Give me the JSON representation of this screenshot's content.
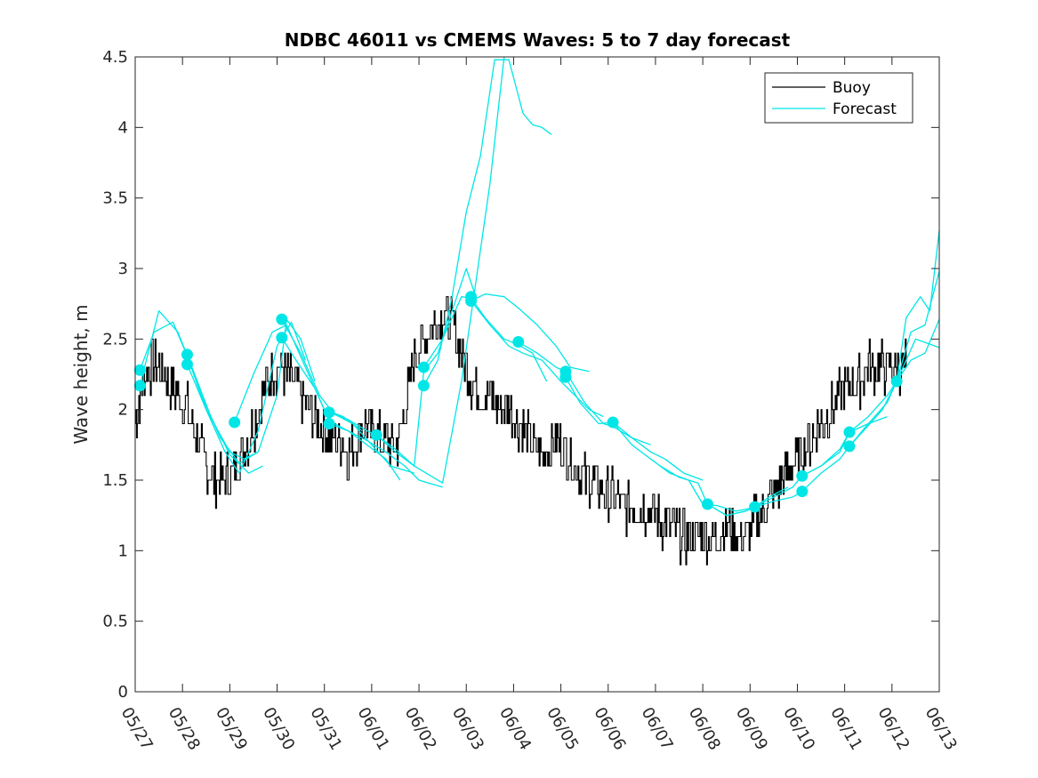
{
  "chart_data": {
    "type": "line",
    "title": "NDBC 46011 vs CMEMS Waves: 5 to 7 day forecast",
    "xlabel": "",
    "ylabel": "Wave height, m",
    "xlim": [
      "05/27",
      "06/13"
    ],
    "ylim": [
      0,
      4.5
    ],
    "yticks": [
      "0",
      "0.5",
      "1",
      "1.5",
      "2",
      "2.5",
      "3",
      "3.5",
      "4",
      "4.5"
    ],
    "xticks": [
      "05/27",
      "05/28",
      "05/29",
      "05/30",
      "05/31",
      "06/01",
      "06/02",
      "06/03",
      "06/04",
      "06/05",
      "06/06",
      "06/07",
      "06/08",
      "06/09",
      "06/10",
      "06/11",
      "06/12",
      "06/13"
    ],
    "grid": false,
    "legend": {
      "placement": "top-right",
      "entries": [
        "Buoy",
        "Forecast"
      ]
    },
    "colors": {
      "buoy": "#000000",
      "forecast": "#00e6e6"
    },
    "buoy": {
      "name": "Buoy",
      "x": [
        0,
        0.15,
        0.3,
        0.5,
        0.7,
        0.9,
        1.1,
        1.3,
        1.5,
        1.7,
        1.9,
        2.1,
        2.3,
        2.5,
        2.7,
        2.9,
        3.1,
        3.3,
        3.5,
        3.7,
        3.9,
        4.1,
        4.3,
        4.5,
        4.7,
        4.9,
        5.1,
        5.3,
        5.5,
        5.7,
        5.9,
        6.1,
        6.3,
        6.5,
        6.7,
        6.9,
        7.1,
        7.3,
        7.5,
        7.7,
        7.9,
        8.1,
        8.3,
        8.5,
        8.7,
        8.9,
        9.1,
        9.3,
        9.5,
        9.7,
        9.9,
        10.1,
        10.3,
        10.5,
        10.7,
        10.9,
        11.1,
        11.3,
        11.5,
        11.7,
        11.9,
        12.1,
        12.3,
        12.5,
        12.7,
        12.9,
        13.1,
        13.3,
        13.5,
        13.7,
        13.9,
        14.1,
        14.3,
        14.5,
        14.7,
        14.9,
        15.1,
        15.3,
        15.5,
        15.7,
        15.9,
        16.1,
        16.3
      ],
      "y": [
        1.9,
        2.2,
        2.3,
        2.3,
        2.2,
        2.1,
        2.0,
        1.8,
        1.6,
        1.5,
        1.5,
        1.6,
        1.7,
        1.9,
        2.1,
        2.3,
        2.3,
        2.2,
        2.1,
        2.0,
        1.9,
        1.8,
        1.8,
        1.7,
        1.8,
        1.9,
        1.8,
        1.8,
        1.7,
        2.0,
        2.4,
        2.5,
        2.6,
        2.7,
        2.6,
        2.4,
        2.2,
        2.1,
        2.1,
        2.0,
        2.0,
        1.9,
        1.8,
        1.7,
        1.7,
        1.8,
        1.7,
        1.6,
        1.5,
        1.5,
        1.4,
        1.4,
        1.3,
        1.3,
        1.3,
        1.3,
        1.2,
        1.2,
        1.1,
        1.1,
        1.1,
        1.1,
        1.1,
        1.2,
        1.1,
        1.1,
        1.2,
        1.3,
        1.4,
        1.5,
        1.6,
        1.7,
        1.8,
        1.9,
        2.0,
        2.1,
        2.2,
        2.2,
        2.3,
        2.3,
        2.3,
        2.3,
        2.3
      ]
    },
    "forecast_series": [
      {
        "x": [
          0.1,
          0.4,
          0.8,
          1.1,
          1.5,
          2.0,
          2.3,
          2.6
        ],
        "y": [
          2.28,
          2.55,
          2.62,
          2.38,
          2.0,
          1.7,
          1.65,
          1.7
        ]
      },
      {
        "x": [
          0.1,
          0.5,
          0.9,
          1.2,
          1.6,
          2.0,
          2.4,
          2.7
        ],
        "y": [
          2.17,
          2.7,
          2.55,
          2.3,
          1.95,
          1.68,
          1.55,
          1.6
        ]
      },
      {
        "x": [
          1.1,
          1.4,
          1.8,
          2.2,
          2.6,
          3.0,
          3.2,
          3.5,
          3.8
        ],
        "y": [
          2.39,
          2.1,
          1.8,
          1.62,
          1.7,
          2.1,
          2.64,
          2.5,
          2.2
        ]
      },
      {
        "x": [
          1.1,
          1.5,
          1.9,
          2.2,
          2.6,
          3.0,
          3.3,
          3.6
        ],
        "y": [
          2.32,
          2.0,
          1.7,
          1.55,
          1.85,
          2.45,
          2.62,
          2.35
        ]
      },
      {
        "x": [
          2.1,
          2.5,
          2.9,
          3.2,
          3.6,
          4.0,
          4.4,
          4.8
        ],
        "y": [
          1.91,
          2.25,
          2.55,
          2.6,
          2.3,
          2.0,
          1.95,
          1.85
        ]
      },
      {
        "x": [
          3.1,
          3.5,
          3.9,
          4.2,
          4.6,
          5.0,
          5.4,
          5.9
        ],
        "y": [
          2.64,
          2.4,
          2.1,
          1.97,
          1.9,
          1.75,
          1.6,
          1.55
        ]
      },
      {
        "x": [
          3.1,
          3.4,
          3.8,
          4.1,
          4.5,
          4.9,
          5.3,
          5.6
        ],
        "y": [
          2.51,
          2.35,
          2.15,
          1.92,
          1.85,
          1.75,
          1.65,
          1.5
        ]
      },
      {
        "x": [
          4.1,
          4.5,
          4.9,
          5.1,
          5.5,
          5.9,
          6.3,
          6.5,
          6.9,
          7.2,
          7.5,
          7.8
        ],
        "y": [
          1.98,
          1.93,
          1.85,
          1.82,
          1.72,
          1.6,
          1.52,
          1.48,
          2.2,
          2.9,
          3.6,
          4.5
        ]
      },
      {
        "x": [
          4.1,
          4.5,
          4.9,
          5.3,
          5.7,
          6.0,
          6.3,
          6.5
        ],
        "y": [
          1.9,
          1.85,
          1.78,
          1.7,
          1.6,
          1.5,
          1.47,
          1.45
        ]
      },
      {
        "x": [
          5.1,
          5.5,
          5.9,
          6.1,
          6.4,
          6.7,
          7.0,
          7.2
        ],
        "y": [
          1.82,
          1.7,
          1.6,
          2.27,
          2.4,
          2.7,
          3.0,
          2.8
        ]
      },
      {
        "x": [
          6.1,
          6.4,
          6.7,
          7.0,
          7.3,
          7.6,
          7.9,
          8.2,
          8.4,
          8.6,
          8.8
        ],
        "y": [
          2.17,
          2.35,
          2.8,
          3.4,
          3.8,
          4.48,
          4.48,
          4.1,
          4.02,
          4.0,
          3.95
        ]
      },
      {
        "x": [
          6.1,
          6.5,
          6.9,
          7.1,
          7.4,
          7.8,
          8.1,
          8.4,
          8.7
        ],
        "y": [
          2.3,
          2.5,
          2.8,
          2.79,
          2.65,
          2.5,
          2.46,
          2.4,
          2.2
        ]
      },
      {
        "x": [
          7.1,
          7.4,
          7.8,
          8.1,
          8.5,
          8.9,
          9.2,
          9.6
        ],
        "y": [
          2.77,
          2.82,
          2.8,
          2.72,
          2.6,
          2.45,
          2.3,
          2.27
        ]
      },
      {
        "x": [
          7.1,
          7.5,
          7.9,
          8.2,
          8.6,
          9.0,
          9.3,
          9.6,
          9.9
        ],
        "y": [
          2.77,
          2.6,
          2.45,
          2.4,
          2.35,
          2.2,
          2.1,
          2.0,
          1.95
        ]
      },
      {
        "x": [
          8.1,
          8.5,
          8.9,
          9.1,
          9.5,
          9.9,
          10.1,
          10.5,
          10.9
        ],
        "y": [
          2.48,
          2.4,
          2.3,
          2.27,
          2.05,
          1.9,
          1.88,
          1.8,
          1.75
        ]
      },
      {
        "x": [
          9.1,
          9.4,
          9.8,
          10.1,
          10.5,
          10.9,
          11.2,
          11.6,
          12.0
        ],
        "y": [
          2.23,
          2.05,
          1.9,
          1.91,
          1.8,
          1.7,
          1.65,
          1.55,
          1.5
        ]
      },
      {
        "x": [
          10.1,
          10.5,
          10.9,
          11.3,
          11.7,
          12.0,
          12.3,
          12.7,
          13.0
        ],
        "y": [
          1.91,
          1.75,
          1.65,
          1.55,
          1.5,
          1.33,
          1.32,
          1.28,
          1.3
        ]
      },
      {
        "x": [
          11.1,
          11.5,
          11.9,
          12.1,
          12.5,
          12.9,
          13.1,
          13.4,
          13.8
        ],
        "y": [
          1.6,
          1.52,
          1.48,
          1.33,
          1.25,
          1.28,
          1.31,
          1.38,
          1.45
        ]
      },
      {
        "x": [
          12.1,
          12.5,
          12.9,
          13.1,
          13.5,
          13.9,
          14.1,
          14.5,
          14.9,
          15.1,
          15.5,
          15.9
        ],
        "y": [
          1.33,
          1.25,
          1.28,
          1.31,
          1.38,
          1.45,
          1.53,
          1.6,
          1.72,
          1.84,
          1.9,
          1.95
        ]
      },
      {
        "x": [
          13.1,
          13.5,
          13.9,
          14.1,
          14.5,
          14.9,
          15.1,
          15.4,
          15.8,
          16.1,
          16.5,
          17.0
        ],
        "y": [
          1.31,
          1.35,
          1.38,
          1.42,
          1.55,
          1.65,
          1.74,
          1.85,
          2.0,
          2.2,
          2.5,
          2.44
        ]
      },
      {
        "x": [
          14.1,
          14.5,
          14.9,
          15.1,
          15.5,
          15.9,
          16.1,
          16.3,
          16.6,
          16.8,
          17.0
        ],
        "y": [
          1.53,
          1.6,
          1.7,
          1.84,
          1.95,
          2.1,
          2.2,
          2.65,
          2.8,
          2.7,
          3.27
        ]
      },
      {
        "x": [
          15.1,
          15.5,
          15.9,
          16.1,
          16.4,
          16.7,
          17.0
        ],
        "y": [
          1.74,
          1.9,
          2.05,
          2.2,
          2.55,
          2.6,
          2.98
        ]
      },
      {
        "x": [
          16.1,
          16.4,
          16.7,
          17.0
        ],
        "y": [
          2.2,
          2.35,
          2.4,
          2.64
        ]
      }
    ],
    "forecast_markers": {
      "x": [
        0.1,
        0.1,
        1.1,
        1.1,
        2.1,
        3.1,
        3.1,
        4.1,
        4.1,
        5.1,
        6.1,
        6.1,
        7.1,
        7.1,
        8.1,
        9.1,
        9.1,
        10.1,
        12.1,
        13.1,
        14.1,
        14.1,
        15.1,
        15.1,
        16.1
      ],
      "y": [
        2.28,
        2.17,
        2.39,
        2.32,
        1.91,
        2.64,
        2.51,
        1.98,
        1.9,
        1.82,
        2.17,
        2.3,
        2.8,
        2.77,
        2.48,
        2.27,
        2.23,
        1.91,
        1.33,
        1.31,
        1.42,
        1.53,
        1.84,
        1.74,
        2.2
      ]
    }
  }
}
